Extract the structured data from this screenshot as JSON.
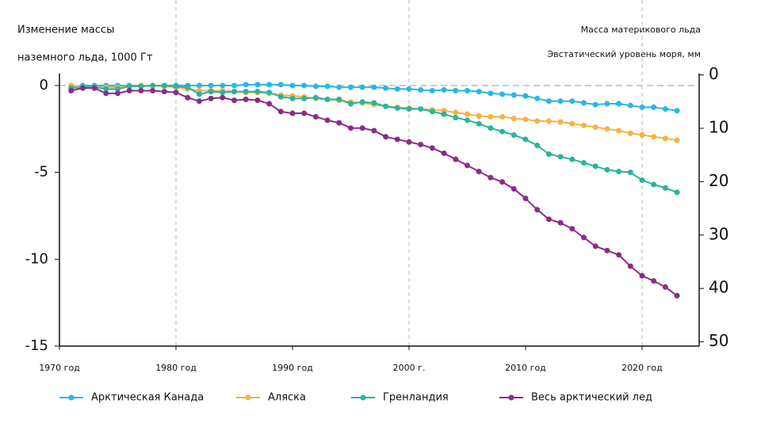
{
  "chart_data": {
    "type": "line",
    "ylabel": [
      "Изменение массы",
      "наземного льда, 1000 Гт"
    ],
    "y2label": [
      "Масса материкового льда",
      "Эвстатический уровень моря, мм"
    ],
    "x": [
      1971,
      1972,
      1973,
      1974,
      1975,
      1976,
      1977,
      1978,
      1979,
      1980,
      1981,
      1982,
      1983,
      1984,
      1985,
      1986,
      1987,
      1988,
      1989,
      1990,
      1991,
      1992,
      1993,
      1994,
      1995,
      1996,
      1997,
      1998,
      1999,
      2000,
      2001,
      2002,
      2003,
      2004,
      2005,
      2006,
      2007,
      2008,
      2009,
      2010,
      2011,
      2012,
      2013,
      2014,
      2015,
      2016,
      2017,
      2018,
      2019,
      2020,
      2021,
      2022,
      2023
    ],
    "xlim": [
      1970,
      2024.9
    ],
    "xticks": [
      {
        "value": 1970,
        "label": "1970 год"
      },
      {
        "value": 1980,
        "label": "1980 год"
      },
      {
        "value": 1990,
        "label": "1990 год"
      },
      {
        "value": 2000,
        "label": "2000 г."
      },
      {
        "value": 2010,
        "label": "2010 год"
      },
      {
        "value": 2020,
        "label": "2020 год"
      }
    ],
    "xgrid": [
      1980,
      2000,
      2020
    ],
    "ylim": [
      -15,
      0.7
    ],
    "yticks": [
      0,
      -5,
      -10,
      -15
    ],
    "hline": 0,
    "y2lim": [
      50.8,
      -0.3
    ],
    "y2ticks": [
      0,
      10,
      20,
      30,
      40,
      50
    ],
    "series": [
      {
        "name": "Арктическая Канада",
        "color": "#29b6e8",
        "values": [
          -0.1,
          0,
          0,
          0,
          0,
          0,
          0,
          0,
          0,
          0,
          0,
          0,
          0,
          0,
          0,
          0.05,
          0.05,
          0.05,
          0.05,
          0,
          0,
          -0.05,
          -0.05,
          -0.1,
          -0.1,
          -0.1,
          -0.1,
          -0.15,
          -0.2,
          -0.2,
          -0.25,
          -0.3,
          -0.25,
          -0.3,
          -0.3,
          -0.35,
          -0.45,
          -0.5,
          -0.55,
          -0.6,
          -0.75,
          -0.9,
          -0.9,
          -0.9,
          -1.0,
          -1.1,
          -1.05,
          -1.05,
          -1.15,
          -1.25,
          -1.25,
          -1.35,
          -1.45
        ]
      },
      {
        "name": "Аляска",
        "color": "#f5b342",
        "values": [
          0,
          -0.1,
          -0.1,
          -0.1,
          -0.1,
          -0.05,
          0,
          0,
          -0.05,
          -0.1,
          -0.2,
          -0.3,
          -0.3,
          -0.3,
          -0.35,
          -0.4,
          -0.4,
          -0.45,
          -0.55,
          -0.6,
          -0.65,
          -0.75,
          -0.8,
          -0.85,
          -0.95,
          -1.0,
          -1.1,
          -1.2,
          -1.25,
          -1.3,
          -1.35,
          -1.4,
          -1.45,
          -1.55,
          -1.65,
          -1.75,
          -1.8,
          -1.8,
          -1.9,
          -1.95,
          -2.05,
          -2.05,
          -2.1,
          -2.2,
          -2.3,
          -2.4,
          -2.5,
          -2.6,
          -2.75,
          -2.85,
          -2.95,
          -3.05,
          -3.15
        ]
      },
      {
        "name": "Гренландия",
        "color": "#2bb3a0",
        "values": [
          -0.15,
          -0.1,
          -0.1,
          -0.2,
          -0.2,
          -0.05,
          -0.05,
          0,
          0,
          -0.05,
          -0.1,
          -0.5,
          -0.35,
          -0.4,
          -0.35,
          -0.35,
          -0.35,
          -0.4,
          -0.65,
          -0.75,
          -0.75,
          -0.7,
          -0.8,
          -0.8,
          -1.05,
          -0.95,
          -1.0,
          -1.2,
          -1.3,
          -1.35,
          -1.35,
          -1.5,
          -1.65,
          -1.85,
          -2.0,
          -2.2,
          -2.45,
          -2.65,
          -2.85,
          -3.1,
          -3.45,
          -3.95,
          -4.1,
          -4.25,
          -4.45,
          -4.65,
          -4.85,
          -4.95,
          -5.0,
          -5.45,
          -5.7,
          -5.9,
          -6.15
        ]
      },
      {
        "name": "Весь арктический лед",
        "color": "#8b2c87",
        "values": [
          -0.3,
          -0.15,
          -0.15,
          -0.45,
          -0.45,
          -0.3,
          -0.3,
          -0.3,
          -0.35,
          -0.4,
          -0.7,
          -0.9,
          -0.75,
          -0.7,
          -0.85,
          -0.8,
          -0.85,
          -1.05,
          -1.5,
          -1.6,
          -1.6,
          -1.8,
          -2.0,
          -2.15,
          -2.45,
          -2.45,
          -2.6,
          -2.95,
          -3.1,
          -3.25,
          -3.4,
          -3.6,
          -3.9,
          -4.25,
          -4.6,
          -4.95,
          -5.3,
          -5.55,
          -5.95,
          -6.5,
          -7.15,
          -7.7,
          -7.9,
          -8.25,
          -8.75,
          -9.25,
          -9.5,
          -9.75,
          -10.4,
          -10.95,
          -11.25,
          -11.6,
          -12.1
        ]
      }
    ]
  }
}
